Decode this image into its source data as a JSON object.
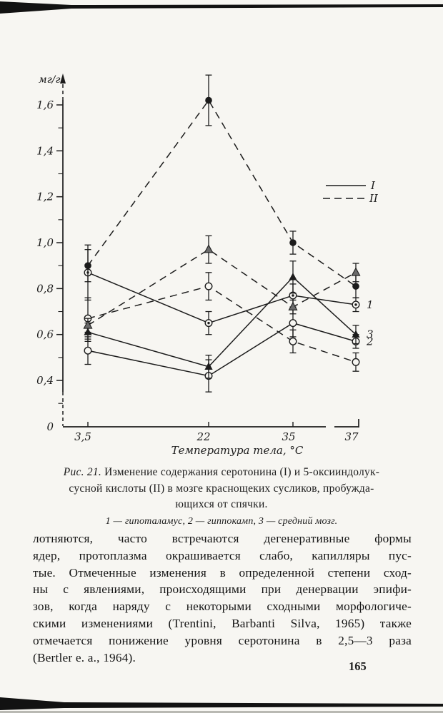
{
  "page": {
    "number": "165"
  },
  "figure": {
    "caption": {
      "label": "Рис. 21.",
      "line1_rest": "Изменение содержания серотонина (I) и 5-оксииндолук-",
      "line2": "сусной кислоты (II) в мозге краснощеких сусликов, пробужда-",
      "line3": "ющихся от спячки.",
      "line4": "1 — гипоталамус, 2 — гиппокамп, 3 — средний мозг."
    }
  },
  "chart_data": {
    "type": "line",
    "title": "",
    "xlabel": "Температура тела, °С",
    "ylabel": "мг/г",
    "x": [
      3.5,
      22,
      35,
      37
    ],
    "x_tick_labels": [
      "3,5",
      "22",
      "35",
      "37"
    ],
    "y_tick_values": [
      1.6,
      1.4,
      1.2,
      1.0,
      0.8,
      0.6,
      0.4
    ],
    "y_tick_labels": [
      "1,6",
      "1,4",
      "1,2",
      "1,0",
      "0,8",
      "0,6",
      "0,4"
    ],
    "y_minor_tick_values": [
      1.5,
      1.3,
      1.1,
      0.9,
      0.7,
      0.5,
      0.3
    ],
    "y_zero_label": "0",
    "ylim": [
      0,
      1.7
    ],
    "axis_break": true,
    "grid": false,
    "legend_position": "upper-right",
    "legend": [
      {
        "label": "I",
        "style": "solid"
      },
      {
        "label": "II",
        "style": "dashed"
      }
    ],
    "series": [
      {
        "name": "I-1-гипоталамус",
        "group": "I",
        "style": "solid",
        "marker": "dot-circle",
        "end_label": "1",
        "values": [
          0.87,
          0.65,
          0.77,
          0.73
        ],
        "errors": [
          0.12,
          0.05,
          0.05,
          0.03
        ]
      },
      {
        "name": "I-2-гиппокамп",
        "group": "I",
        "style": "solid",
        "marker": "open-circle",
        "end_label": "2",
        "values": [
          0.53,
          0.42,
          0.65,
          0.57
        ],
        "errors": [
          0.06,
          0.07,
          0.06,
          0.03
        ]
      },
      {
        "name": "I-3-средний-мозг",
        "group": "I",
        "style": "solid",
        "marker": "filled-triangle",
        "end_label": "3",
        "values": [
          0.61,
          0.46,
          0.85,
          0.6
        ],
        "errors": [
          0.04,
          0.05,
          0.07,
          0.04
        ]
      },
      {
        "name": "II-1-гипоталамус",
        "group": "II",
        "style": "dashed",
        "marker": "filled-circle",
        "end_label": "",
        "values": [
          0.9,
          1.62,
          1.0,
          0.81
        ],
        "errors": [
          0.07,
          0.11,
          0.05,
          0.05
        ]
      },
      {
        "name": "II-2-гиппокамп",
        "group": "II",
        "style": "dashed",
        "marker": "open-circle",
        "end_label": "",
        "values": [
          0.67,
          0.81,
          0.57,
          0.48
        ],
        "errors": [
          0.09,
          0.06,
          0.05,
          0.04
        ]
      },
      {
        "name": "II-3-средний-мозг",
        "group": "II",
        "style": "dashed",
        "marker": "grey-triangle",
        "end_label": "",
        "values": [
          0.64,
          0.97,
          0.72,
          0.87
        ],
        "errors": [
          0.03,
          0.06,
          0.03,
          0.04
        ]
      }
    ]
  },
  "body_text": {
    "lines": [
      "лотняются, часто встречаются дегенеративные формы",
      "ядер, протоплазма окрашивается слабо, капилляры пус-",
      "тые. Отмеченные изменения в определенной степени сход-",
      "ны с явлениями, происходящими при денервации эпифи-",
      "зов, когда наряду с некоторыми сходными морфологиче-",
      "скими изменениями (Trentini, Barbanti Silva, 1965) также",
      "отмечается понижение уровня серотонина в 2,5—3 раза",
      "(Bertler e. a., 1964)."
    ]
  }
}
